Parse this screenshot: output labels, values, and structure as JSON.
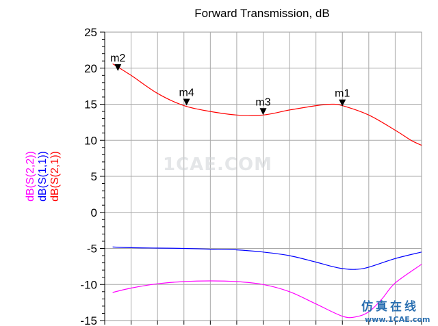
{
  "chart_data": {
    "type": "line",
    "title": "Forward Transmission, dB",
    "ylim": [
      -15,
      25
    ],
    "yticks": [
      "25",
      "20",
      "15",
      "10",
      "5",
      "0",
      "-5",
      "-10",
      "-15"
    ],
    "grid": true,
    "ylabels": [
      {
        "text": "dB(S(2,1))",
        "color": "#ff0000"
      },
      {
        "text": "dB(S(1,1))",
        "color": "#0000ff"
      },
      {
        "text": "dB(S(2,2))",
        "color": "#ff00ff"
      }
    ],
    "x_steps": 12,
    "series": [
      {
        "name": "dB(S(2,1))",
        "color": "#ff0000",
        "x": [
          0.3,
          1.0,
          2.0,
          3.0,
          4.0,
          5.0,
          6.0,
          7.0,
          8.0,
          8.6,
          9.0,
          10.0,
          11.0,
          11.6,
          12.0
        ],
        "y": [
          20.6,
          19.0,
          16.5,
          14.8,
          14.0,
          13.5,
          13.5,
          14.2,
          14.8,
          15.0,
          14.8,
          13.5,
          11.4,
          10.0,
          9.3
        ]
      },
      {
        "name": "dB(S(1,1))",
        "color": "#0000ff",
        "x": [
          0.3,
          1.0,
          2.0,
          3.0,
          4.0,
          5.0,
          6.0,
          7.0,
          8.0,
          8.5,
          9.0,
          9.5,
          10.0,
          11.0,
          12.0
        ],
        "y": [
          -4.8,
          -4.9,
          -4.95,
          -5.0,
          -5.1,
          -5.2,
          -5.5,
          -6.0,
          -6.9,
          -7.4,
          -7.8,
          -7.9,
          -7.6,
          -6.4,
          -5.5
        ]
      },
      {
        "name": "dB(S(2,2))",
        "color": "#ff00ff",
        "x": [
          0.3,
          1.0,
          2.0,
          3.0,
          4.0,
          5.0,
          6.0,
          7.0,
          8.0,
          9.0,
          9.5,
          10.0,
          10.5,
          11.0,
          12.0
        ],
        "y": [
          -11.1,
          -10.5,
          -9.9,
          -9.6,
          -9.5,
          -9.6,
          -10.0,
          -11.0,
          -12.7,
          -14.4,
          -14.5,
          -13.8,
          -12.0,
          -9.8,
          -7.2
        ]
      }
    ],
    "markers": [
      {
        "label": "m2",
        "x": 0.5,
        "y": 19.7
      },
      {
        "label": "m4",
        "x": 3.1,
        "y": 14.9
      },
      {
        "label": "m3",
        "x": 6.0,
        "y": 13.6
      },
      {
        "label": "m1",
        "x": 9.0,
        "y": 14.8
      }
    ]
  },
  "watermark": "1CAE.COM",
  "logo": {
    "chinese": "仿真在线",
    "url": "www.1CAE.com"
  }
}
